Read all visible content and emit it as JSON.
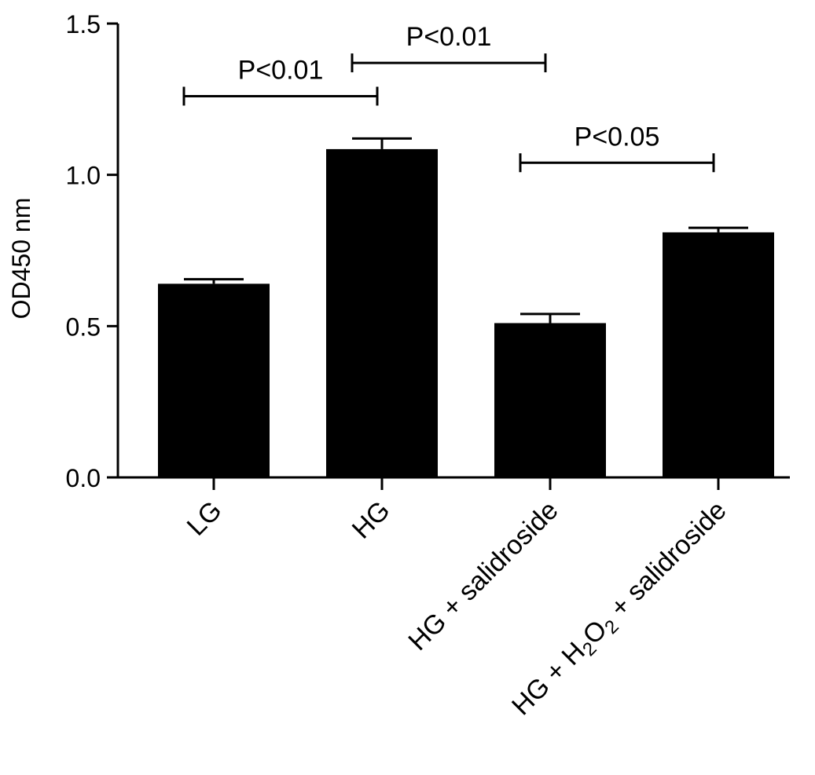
{
  "chart_data": {
    "type": "bar",
    "title": "",
    "xlabel": "",
    "ylabel": "OD450 nm",
    "ylim": [
      0,
      1.5
    ],
    "yticks": [
      "0.0",
      "0.5",
      "1.0",
      "1.5"
    ],
    "categories": [
      {
        "parts": [
          {
            "text": "LG"
          }
        ]
      },
      {
        "parts": [
          {
            "text": "HG"
          }
        ]
      },
      {
        "parts": [
          {
            "text": "HG + salidroside"
          }
        ]
      },
      {
        "parts": [
          {
            "text": "HG + H"
          },
          {
            "text": "2",
            "sub": true
          },
          {
            "text": "O"
          },
          {
            "text": "2",
            "sub": true
          },
          {
            "text": " + salidroside"
          }
        ]
      }
    ],
    "values": [
      0.64,
      1.085,
      0.51,
      0.81
    ],
    "errors": [
      0.015,
      0.035,
      0.03,
      0.015
    ],
    "bar_color": "#000000",
    "grid": false,
    "significance": [
      {
        "from": 0,
        "to": 1,
        "y": 1.26,
        "label": "P<0.01"
      },
      {
        "from": 1,
        "to": 2,
        "y": 1.37,
        "label": "P<0.01"
      },
      {
        "from": 2,
        "to": 3,
        "y": 1.04,
        "label": "P<0.05"
      }
    ]
  }
}
